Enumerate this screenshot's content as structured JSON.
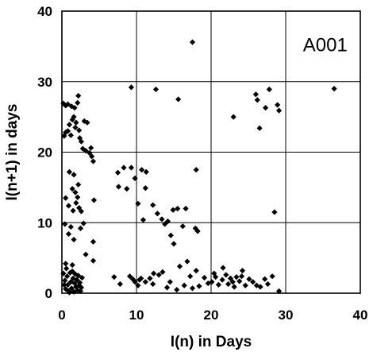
{
  "chart_data": {
    "type": "scatter",
    "title": "",
    "annotation": "A001",
    "xlabel": "I(n) in Days",
    "ylabel": "I(n+1) in days",
    "xlim": [
      0,
      40
    ],
    "ylim": [
      0,
      40
    ],
    "xticks": [
      "0",
      "10",
      "20",
      "30",
      "40"
    ],
    "yticks": [
      "0",
      "10",
      "20",
      "30",
      "40"
    ],
    "grid": true,
    "marker": "diamond",
    "color": "#000000",
    "series": [
      {
        "points": [
          [
            0.2,
            26.9
          ],
          [
            0.5,
            26.6
          ],
          [
            0.8,
            26.8
          ],
          [
            1.3,
            26.5
          ],
          [
            1.7,
            26.3
          ],
          [
            2.2,
            28.0
          ],
          [
            2.1,
            27.0
          ],
          [
            0.3,
            22.3
          ],
          [
            0.5,
            22.8
          ],
          [
            0.8,
            23.0
          ],
          [
            1.0,
            23.9
          ],
          [
            1.4,
            24.6
          ],
          [
            1.6,
            25.0
          ],
          [
            1.9,
            24.2
          ],
          [
            2.3,
            23.1
          ],
          [
            1.2,
            22.4
          ],
          [
            2.4,
            22.0
          ],
          [
            1.8,
            23.5
          ],
          [
            2.6,
            21.5
          ],
          [
            3.0,
            24.4
          ],
          [
            3.4,
            24.2
          ],
          [
            2.8,
            20.5
          ],
          [
            3.2,
            20.2
          ],
          [
            3.7,
            19.9
          ],
          [
            4.0,
            19.4
          ],
          [
            4.2,
            18.7
          ],
          [
            3.9,
            20.6
          ],
          [
            1.0,
            17.2
          ],
          [
            1.6,
            16.8
          ],
          [
            2.2,
            15.4
          ],
          [
            1.8,
            14.3
          ],
          [
            1.4,
            14.8
          ],
          [
            2.1,
            13.6
          ],
          [
            1.9,
            12.8
          ],
          [
            2.3,
            12.1
          ],
          [
            1.5,
            11.7
          ],
          [
            0.5,
            13.5
          ],
          [
            0.9,
            12.4
          ],
          [
            2.6,
            11.6
          ],
          [
            4.3,
            13.2
          ],
          [
            0.4,
            9.8
          ],
          [
            1.2,
            9.4
          ],
          [
            0.9,
            8.4
          ],
          [
            2.5,
            9.2
          ],
          [
            1.6,
            7.6
          ],
          [
            2.9,
            9.9
          ],
          [
            4.2,
            7.3
          ],
          [
            3.2,
            5.5
          ],
          [
            1.4,
            4.0
          ],
          [
            0.5,
            4.2
          ],
          [
            4.2,
            4.6
          ],
          [
            0.2,
            2.8
          ],
          [
            0.4,
            1.8
          ],
          [
            0.5,
            0.6
          ],
          [
            0.7,
            2.4
          ],
          [
            0.8,
            1.2
          ],
          [
            0.9,
            0.3
          ],
          [
            1.1,
            2.9
          ],
          [
            1.2,
            1.6
          ],
          [
            1.3,
            0.7
          ],
          [
            1.5,
            2.1
          ],
          [
            1.6,
            0.2
          ],
          [
            1.7,
            1.4
          ],
          [
            1.8,
            2.7
          ],
          [
            1.9,
            0.9
          ],
          [
            2.0,
            1.9
          ],
          [
            2.1,
            0.4
          ],
          [
            2.2,
            2.5
          ],
          [
            2.3,
            1.1
          ],
          [
            2.5,
            0.3
          ],
          [
            0.6,
            3.5
          ],
          [
            1.0,
            0.1
          ],
          [
            2.4,
            1.5
          ],
          [
            1.4,
            3.1
          ],
          [
            0.3,
            1.2
          ],
          [
            2.6,
            0.8
          ],
          [
            2.7,
            2.2
          ],
          [
            7.5,
            17.1
          ],
          [
            8.3,
            17.8
          ],
          [
            9.3,
            17.8
          ],
          [
            7.6,
            15.1
          ],
          [
            8.7,
            14.8
          ],
          [
            9.8,
            16.3
          ],
          [
            10.7,
            17.5
          ],
          [
            11.3,
            17.2
          ],
          [
            10.2,
            12.7
          ],
          [
            12.2,
            12.5
          ],
          [
            11.2,
            14.9
          ],
          [
            12.8,
            11.3
          ],
          [
            13.4,
            10.5
          ],
          [
            13.8,
            9.8
          ],
          [
            14.2,
            10.2
          ],
          [
            14.9,
            11.8
          ],
          [
            15.5,
            12.0
          ],
          [
            16.6,
            12.0
          ],
          [
            14.6,
            8.2
          ],
          [
            16.2,
            9.5
          ],
          [
            15.0,
            7.0
          ],
          [
            10.9,
            10.4
          ],
          [
            18.2,
            8.8
          ],
          [
            18.0,
            17.5
          ],
          [
            17.9,
            9.2
          ],
          [
            9.3,
            29.2
          ],
          [
            12.6,
            28.9
          ],
          [
            15.6,
            27.5
          ],
          [
            17.5,
            35.6
          ],
          [
            7.0,
            2.3
          ],
          [
            7.8,
            1.3
          ],
          [
            9.1,
            2.4
          ],
          [
            9.8,
            1.6
          ],
          [
            10.2,
            1.1
          ],
          [
            10.6,
            2.1
          ],
          [
            11.2,
            1.6
          ],
          [
            11.8,
            2.1
          ],
          [
            12.2,
            1.3
          ],
          [
            13.0,
            2.6
          ],
          [
            13.5,
            3.0
          ],
          [
            14.5,
            1.6
          ],
          [
            15.4,
            0.5
          ],
          [
            16.4,
            1.1
          ],
          [
            17.2,
            2.4
          ],
          [
            16.8,
            4.5
          ],
          [
            17.5,
            0.7
          ],
          [
            18.4,
            1.0
          ],
          [
            19.1,
            2.2
          ],
          [
            19.6,
            1.4
          ],
          [
            15.8,
            3.8
          ],
          [
            10.4,
            1.9
          ],
          [
            9.5,
            2.0
          ],
          [
            14.1,
            0.8
          ],
          [
            12.3,
            2.8
          ],
          [
            18.0,
            3.2
          ],
          [
            20.1,
            1.6
          ],
          [
            20.6,
            2.3
          ],
          [
            21.0,
            1.2
          ],
          [
            21.5,
            1.9
          ],
          [
            22.0,
            2.6
          ],
          [
            22.3,
            1.3
          ],
          [
            22.6,
            2.1
          ],
          [
            22.9,
            1.6
          ],
          [
            23.1,
            0.9
          ],
          [
            23.4,
            2.3
          ],
          [
            23.8,
            1.7
          ],
          [
            24.1,
            2.4
          ],
          [
            24.6,
            1.1
          ],
          [
            25.1,
            2.0
          ],
          [
            25.6,
            1.6
          ],
          [
            26.1,
            1.1
          ],
          [
            26.6,
            0.9
          ],
          [
            27.2,
            2.0
          ],
          [
            27.6,
            1.3
          ],
          [
            28.2,
            2.4
          ],
          [
            29.1,
            0.3
          ],
          [
            21.6,
            3.6
          ],
          [
            24.2,
            3.2
          ],
          [
            20.4,
            2.8
          ],
          [
            23.0,
            25.0
          ],
          [
            26.0,
            28.2
          ],
          [
            26.2,
            27.4
          ],
          [
            26.5,
            23.4
          ],
          [
            27.3,
            26.3
          ],
          [
            27.8,
            28.9
          ],
          [
            28.5,
            11.5
          ],
          [
            28.9,
            26.7
          ],
          [
            29.1,
            25.9
          ],
          [
            36.5,
            29.0
          ]
        ]
      }
    ]
  }
}
